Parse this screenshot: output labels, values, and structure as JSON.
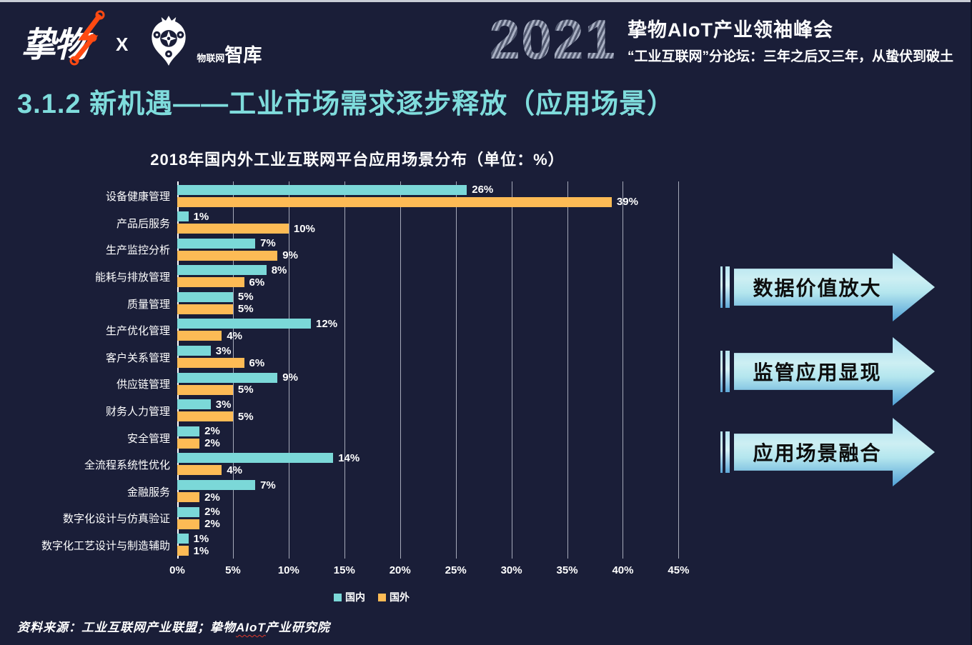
{
  "header": {
    "logo_left": {
      "brand": "挚物",
      "x_separator": "X",
      "partner_small": "物联网",
      "partner_large": "智库"
    },
    "banner": {
      "year": "2021",
      "title": "挚物AIoT产业领袖峰会",
      "subtitle": "“工业互联网”分论坛：三年之后又三年，从蛰伏到破土"
    }
  },
  "slide_title": "3.1.2 新机遇——工业市场需求逐步释放（应用场景）",
  "chart_data": {
    "type": "bar",
    "orientation": "horizontal",
    "title": "2018年国内外工业互联网平台应用场景分布（单位：%）",
    "categories": [
      "设备健康管理",
      "产品后服务",
      "生产监控分析",
      "能耗与排放管理",
      "质量管理",
      "生产优化管理",
      "客户关系管理",
      "供应链管理",
      "财务人力管理",
      "安全管理",
      "全流程系统性优化",
      "金融服务",
      "数字化设计与仿真验证",
      "数字化工艺设计与制造辅助"
    ],
    "series": [
      {
        "name": "国内",
        "color": "#7bd8d8",
        "values": [
          26,
          1,
          7,
          8,
          5,
          12,
          3,
          9,
          3,
          2,
          14,
          7,
          2,
          1
        ]
      },
      {
        "name": "国外",
        "color": "#fdbb55",
        "values": [
          39,
          10,
          9,
          6,
          5,
          4,
          6,
          5,
          5,
          2,
          4,
          2,
          2,
          1
        ]
      }
    ],
    "x_ticks": [
      "0%",
      "5%",
      "10%",
      "15%",
      "20%",
      "25%",
      "30%",
      "35%",
      "40%",
      "45%"
    ],
    "xlim": [
      0,
      46
    ],
    "value_suffix": "%",
    "grid": true,
    "legend_position": "bottom"
  },
  "callouts": [
    {
      "label": "数据价值放大"
    },
    {
      "label": "监管应用显现"
    },
    {
      "label": "应用场景融合"
    }
  ],
  "callout_tops": [
    354,
    472,
    585
  ],
  "footer": {
    "source_prefix": "资料来源：工业互联网产业联盟；挚物",
    "source_highlight": "AIoT",
    "source_suffix": "产业研究院"
  },
  "colors": {
    "background": "#1a1e38",
    "domestic": "#7bd8d8",
    "overseas": "#fdbb55",
    "heading": "#7fdcdc",
    "lightning": "#ff4a12",
    "gridline": "#c9cdd6"
  }
}
